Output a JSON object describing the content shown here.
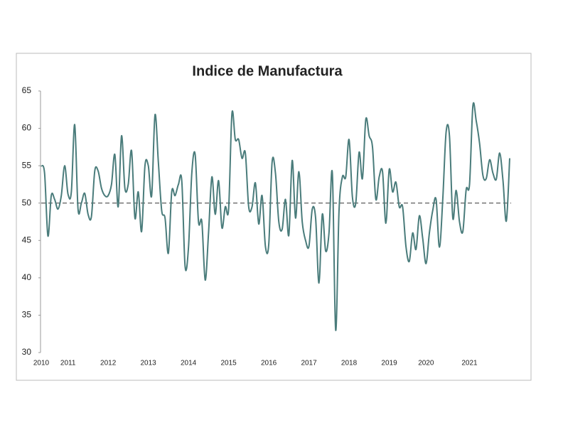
{
  "chart_data": {
    "type": "line",
    "title": "Indice de Manufactura",
    "categories": [
      "2010",
      null,
      null,
      null,
      null,
      null,
      null,
      null,
      "2011",
      null,
      null,
      null,
      null,
      null,
      null,
      null,
      null,
      null,
      null,
      null,
      "2012",
      null,
      null,
      null,
      null,
      null,
      null,
      null,
      null,
      null,
      null,
      null,
      "2013",
      null,
      null,
      null,
      null,
      null,
      null,
      null,
      null,
      null,
      null,
      null,
      "2014",
      null,
      null,
      null,
      null,
      null,
      null,
      null,
      null,
      null,
      null,
      null,
      "2015",
      null,
      null,
      null,
      null,
      null,
      null,
      null,
      null,
      null,
      null,
      null,
      "2016",
      null,
      null,
      null,
      null,
      null,
      null,
      null,
      null,
      null,
      null,
      null,
      "2017",
      null,
      null,
      null,
      null,
      null,
      null,
      null,
      null,
      null,
      null,
      null,
      "2018",
      null,
      null,
      null,
      null,
      null,
      null,
      null,
      null,
      null,
      null,
      null,
      "2019",
      null,
      null,
      null,
      null,
      null,
      null,
      null,
      null,
      null,
      null,
      "2020",
      null,
      null,
      null,
      null,
      null,
      null,
      null,
      null,
      null,
      null,
      null,
      null,
      "2021",
      null,
      null,
      null,
      null,
      null,
      null,
      null,
      null,
      null,
      null,
      null,
      null
    ],
    "values": [
      55,
      54,
      45.6,
      51,
      50.5,
      49.2,
      51,
      55,
      51.2,
      51.5,
      60.5,
      49.2,
      50,
      51.3,
      48.5,
      48.2,
      54.3,
      54.3,
      52,
      51,
      51,
      52.5,
      56.5,
      49.5,
      59,
      52,
      52.5,
      57,
      48,
      51.5,
      46.2,
      55,
      55,
      51,
      61.8,
      55.5,
      49,
      48,
      43.3,
      51.5,
      51,
      52.5,
      53,
      41.5,
      44,
      54,
      56.5,
      47.5,
      47.5,
      39.7,
      46,
      53.5,
      48.5,
      53,
      46.7,
      49.5,
      49.2,
      62,
      58.5,
      58.5,
      56,
      56.7,
      49.5,
      49.5,
      52.7,
      47.2,
      51,
      44.2,
      44.5,
      55.5,
      54,
      47.5,
      46.5,
      50.5,
      45.7,
      55.7,
      48,
      54.2,
      47.5,
      45,
      44.2,
      49.2,
      48,
      39.3,
      48.5,
      43.6,
      46,
      54,
      33,
      49,
      53.5,
      53.5,
      58.5,
      50.8,
      50,
      56.8,
      53.3,
      61.2,
      59,
      57.5,
      50.5,
      53.5,
      54.2,
      47.3,
      54.5,
      51.5,
      52.8,
      49.5,
      49.5,
      44.2,
      42.2,
      46,
      43.8,
      48.3,
      45.3,
      41.9,
      46,
      49,
      50.5,
      44.1,
      50.5,
      59.5,
      59,
      48,
      51.7,
      47.5,
      46.2,
      51.8,
      52.5,
      63,
      61,
      58,
      53.7,
      53.3,
      55.8,
      54,
      53.2,
      56.7,
      53,
      47.6,
      56
    ],
    "color": "#4a7c7b",
    "reference_line": 50,
    "ylim": [
      30,
      65
    ],
    "yticks": [
      30,
      35,
      40,
      45,
      50,
      55,
      60,
      65
    ],
    "grid": false
  }
}
